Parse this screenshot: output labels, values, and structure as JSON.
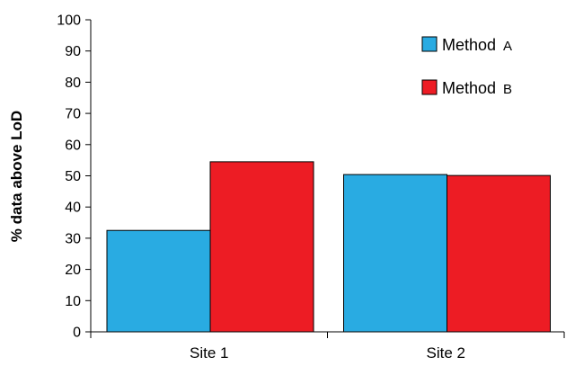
{
  "chart_data": {
    "type": "bar",
    "categories": [
      "Site 1",
      "Site 2"
    ],
    "series": [
      {
        "name": "Method  A",
        "label": "Method",
        "label_suffix": "A",
        "color": "#29abe2",
        "values": [
          32.5,
          50.4
        ]
      },
      {
        "name": "Method  B",
        "label": "Method",
        "label_suffix": "B",
        "color": "#ed1c24",
        "values": [
          54.5,
          50.1
        ]
      }
    ],
    "title": "",
    "xlabel": "",
    "ylabel": "% data above LoD",
    "ylim": [
      0,
      100
    ],
    "yticks": [
      0,
      10,
      20,
      30,
      40,
      50,
      60,
      70,
      80,
      90,
      100
    ],
    "grid": false,
    "legend_position": "top-right"
  }
}
